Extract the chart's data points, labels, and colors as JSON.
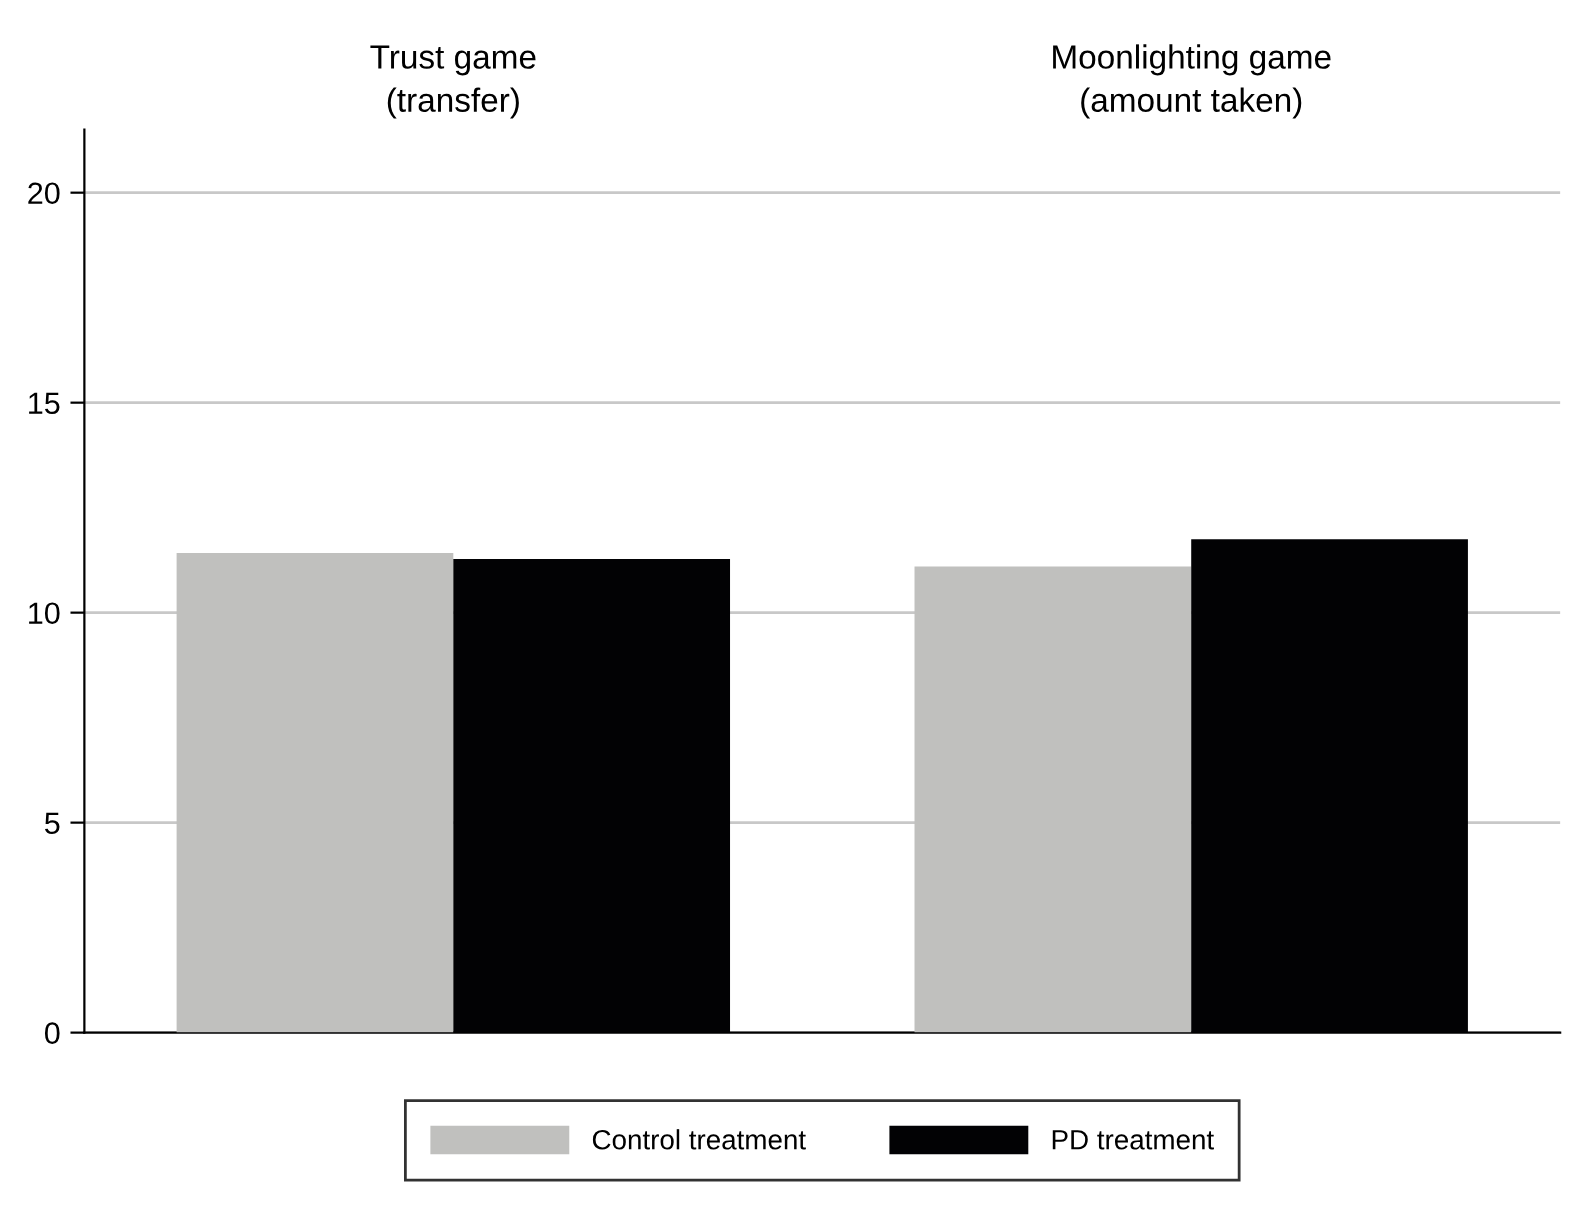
{
  "chart_data": {
    "type": "bar",
    "categories": [
      "Trust game\n(transfer)",
      "Moonlighting game\n(amount taken)"
    ],
    "series": [
      {
        "name": "Control treatment",
        "color": "#c0c0be",
        "values": [
          11.42,
          11.1
        ]
      },
      {
        "name": "PD treatment",
        "color": "#020204",
        "values": [
          11.28,
          11.75
        ]
      }
    ],
    "ylim": [
      0,
      21.5
    ],
    "yticks": [
      0,
      5,
      10,
      15,
      20
    ],
    "grid": "y",
    "legend": "bottom"
  }
}
